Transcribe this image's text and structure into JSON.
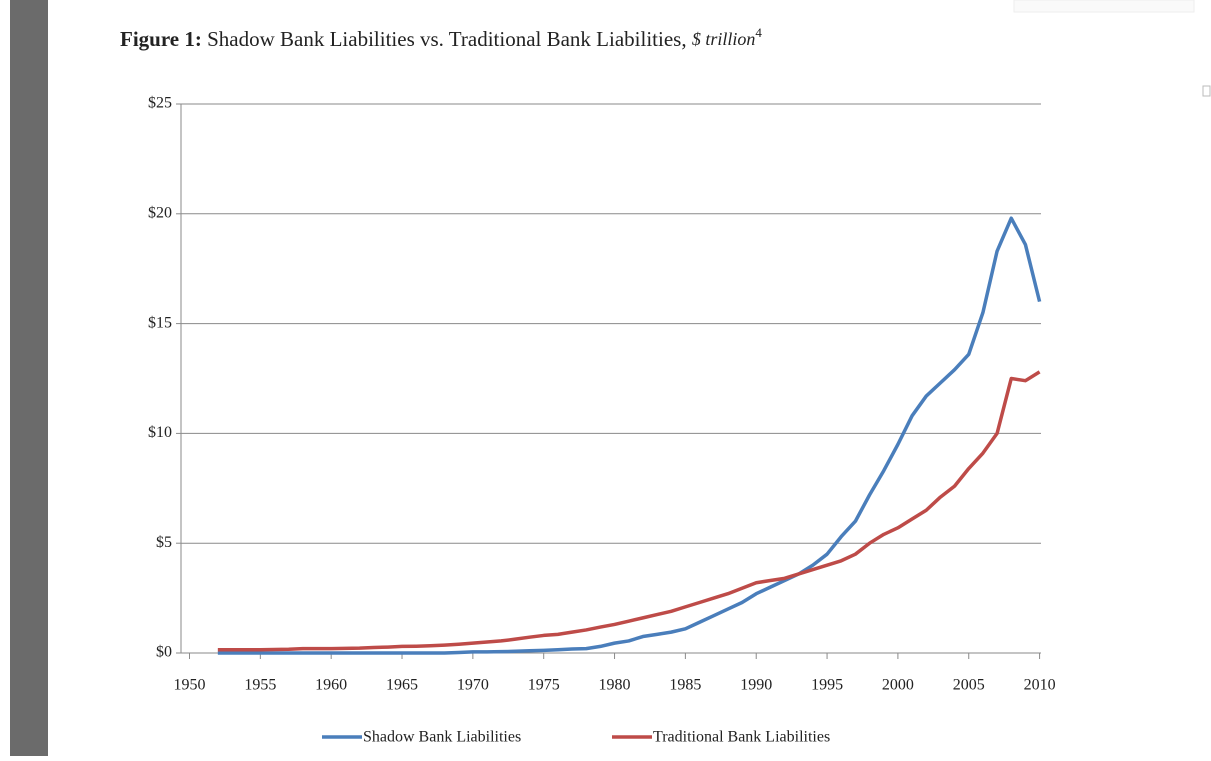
{
  "chart_data": {
    "type": "line",
    "title_label": "Figure 1:",
    "title": "Shadow Bank Liabilities vs. Traditional Bank Liabilities,",
    "title_unit": "$ trillion",
    "title_note": "4",
    "x": [
      1952,
      1953,
      1954,
      1955,
      1956,
      1957,
      1958,
      1959,
      1960,
      1961,
      1962,
      1963,
      1964,
      1965,
      1966,
      1967,
      1968,
      1969,
      1970,
      1971,
      1972,
      1973,
      1974,
      1975,
      1976,
      1977,
      1978,
      1979,
      1980,
      1981,
      1982,
      1983,
      1984,
      1985,
      1986,
      1987,
      1988,
      1989,
      1990,
      1991,
      1992,
      1993,
      1994,
      1995,
      1996,
      1997,
      1998,
      1999,
      2000,
      2001,
      2002,
      2003,
      2004,
      2005,
      2006,
      2007,
      2008,
      2009,
      2010
    ],
    "series": [
      {
        "name": "Shadow Bank Liabilities",
        "color": "#4a7ebb",
        "values": [
          0,
          0,
          0,
          0,
          0,
          0,
          0,
          0,
          0,
          0,
          0,
          0,
          0,
          0,
          0,
          0,
          0,
          0.02,
          0.05,
          0.05,
          0.06,
          0.08,
          0.1,
          0.12,
          0.15,
          0.18,
          0.2,
          0.3,
          0.45,
          0.55,
          0.75,
          0.85,
          0.95,
          1.1,
          1.4,
          1.7,
          2.0,
          2.3,
          2.7,
          3.0,
          3.3,
          3.6,
          4.0,
          4.5,
          5.3,
          6.0,
          7.2,
          8.3,
          9.5,
          10.8,
          11.7,
          12.3,
          12.9,
          13.6,
          15.5,
          18.3,
          19.8,
          18.6,
          16.0
        ]
      },
      {
        "name": "Traditional Bank Liabilities",
        "color": "#be4b48",
        "values": [
          0.15,
          0.15,
          0.15,
          0.15,
          0.16,
          0.17,
          0.2,
          0.2,
          0.2,
          0.21,
          0.22,
          0.25,
          0.27,
          0.3,
          0.31,
          0.33,
          0.36,
          0.4,
          0.45,
          0.5,
          0.55,
          0.63,
          0.72,
          0.8,
          0.85,
          0.95,
          1.05,
          1.18,
          1.3,
          1.45,
          1.6,
          1.75,
          1.9,
          2.1,
          2.3,
          2.5,
          2.7,
          2.95,
          3.2,
          3.3,
          3.4,
          3.6,
          3.8,
          4.0,
          4.2,
          4.5,
          5.0,
          5.4,
          5.7,
          6.1,
          6.5,
          7.1,
          7.6,
          8.4,
          9.1,
          10.0,
          12.5,
          12.4,
          12.8
        ]
      }
    ],
    "xlim": [
      1949.4,
      2010.1
    ],
    "xticks": [
      1950,
      1955,
      1960,
      1965,
      1970,
      1975,
      1980,
      1985,
      1990,
      1995,
      2000,
      2005,
      2010
    ],
    "ylim": [
      0,
      25
    ],
    "yticks": [
      {
        "value": 0,
        "label": "$0"
      },
      {
        "value": 5,
        "label": "$5"
      },
      {
        "value": 10,
        "label": "$10"
      },
      {
        "value": 15,
        "label": "$15"
      },
      {
        "value": 20,
        "label": "$20"
      },
      {
        "value": 25,
        "label": "$25"
      }
    ],
    "grid": true
  }
}
